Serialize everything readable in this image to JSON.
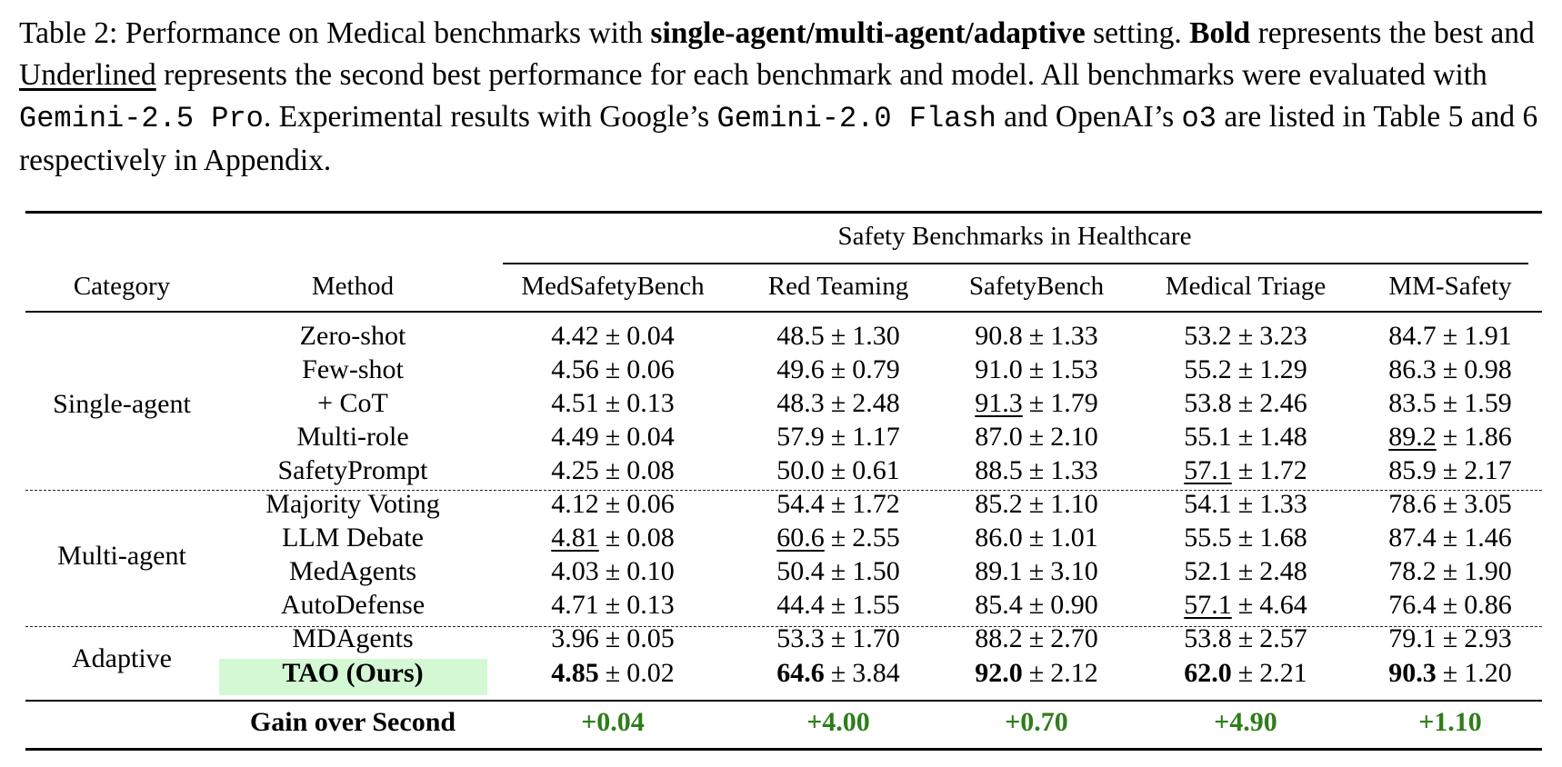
{
  "caption": {
    "prefix": "Table 2: Performance on Medical benchmarks with ",
    "settings": "single-agent/multi-agent/adaptive",
    "after_settings": " setting. ",
    "bold_word": "Bold",
    "between": " represents the best and ",
    "underlined_word": "Underlined",
    "after_underlined": " represents the second best performance for each benchmark and model. All benchmarks were evaluated with ",
    "model_main": "Gemini-2.5 Pro",
    "after_model_main": ". Experimental results with Google’s ",
    "model_flash": "Gemini-2.0 Flash",
    "after_model_flash": " and OpenAI’s ",
    "model_o3": "o3",
    "tail": " are listed in Table 5 and 6 respectively in Appendix."
  },
  "table": {
    "group_header": "Safety Benchmarks in Healthcare",
    "category_header": "Category",
    "method_header": "Method",
    "columns": [
      "MedSafetyBench",
      "Red Teaming",
      "SafetyBench",
      "Medical Triage",
      "MM-Safety"
    ],
    "pm": "±",
    "categories": [
      "Single-agent",
      "Multi-agent",
      "Adaptive"
    ],
    "rows": [
      {
        "method": "Zero-shot",
        "values": [
          [
            "4.42",
            "0.04"
          ],
          [
            "48.5",
            "1.30"
          ],
          [
            "90.8",
            "1.33"
          ],
          [
            "53.2",
            "3.23"
          ],
          [
            "84.7",
            "1.91"
          ]
        ]
      },
      {
        "method": "Few-shot",
        "values": [
          [
            "4.56",
            "0.06"
          ],
          [
            "49.6",
            "0.79"
          ],
          [
            "91.0",
            "1.53"
          ],
          [
            "55.2",
            "1.29"
          ],
          [
            "86.3",
            "0.98"
          ]
        ]
      },
      {
        "method": "+ CoT",
        "values": [
          [
            "4.51",
            "0.13"
          ],
          [
            "48.3",
            "2.48"
          ],
          [
            "91.3",
            "1.79"
          ],
          [
            "53.8",
            "2.46"
          ],
          [
            "83.5",
            "1.59"
          ]
        ]
      },
      {
        "method": "Multi-role",
        "values": [
          [
            "4.49",
            "0.04"
          ],
          [
            "57.9",
            "1.17"
          ],
          [
            "87.0",
            "2.10"
          ],
          [
            "55.1",
            "1.48"
          ],
          [
            "89.2",
            "1.86"
          ]
        ]
      },
      {
        "method": "SafetyPrompt",
        "values": [
          [
            "4.25",
            "0.08"
          ],
          [
            "50.0",
            "0.61"
          ],
          [
            "88.5",
            "1.33"
          ],
          [
            "57.1",
            "1.72"
          ],
          [
            "85.9",
            "2.17"
          ]
        ]
      },
      {
        "method": "Majority Voting",
        "values": [
          [
            "4.12",
            "0.06"
          ],
          [
            "54.4",
            "1.72"
          ],
          [
            "85.2",
            "1.10"
          ],
          [
            "54.1",
            "1.33"
          ],
          [
            "78.6",
            "3.05"
          ]
        ]
      },
      {
        "method": "LLM Debate",
        "values": [
          [
            "4.81",
            "0.08"
          ],
          [
            "60.6",
            "2.55"
          ],
          [
            "86.0",
            "1.01"
          ],
          [
            "55.5",
            "1.68"
          ],
          [
            "87.4",
            "1.46"
          ]
        ]
      },
      {
        "method": "MedAgents",
        "values": [
          [
            "4.03",
            "0.10"
          ],
          [
            "50.4",
            "1.50"
          ],
          [
            "89.1",
            "3.10"
          ],
          [
            "52.1",
            "2.48"
          ],
          [
            "78.2",
            "1.90"
          ]
        ]
      },
      {
        "method": "AutoDefense",
        "values": [
          [
            "4.71",
            "0.13"
          ],
          [
            "44.4",
            "1.55"
          ],
          [
            "85.4",
            "0.90"
          ],
          [
            "57.1",
            "4.64"
          ],
          [
            "76.4",
            "0.86"
          ]
        ]
      },
      {
        "method": "MDAgents",
        "values": [
          [
            "3.96",
            "0.05"
          ],
          [
            "53.3",
            "1.70"
          ],
          [
            "88.2",
            "2.70"
          ],
          [
            "53.8",
            "2.57"
          ],
          [
            "79.1",
            "2.93"
          ]
        ]
      },
      {
        "method": "TAO (Ours)",
        "values": [
          [
            "4.85",
            "0.02"
          ],
          [
            "64.6",
            "3.84"
          ],
          [
            "92.0",
            "2.12"
          ],
          [
            "62.0",
            "2.21"
          ],
          [
            "90.3",
            "1.20"
          ]
        ]
      }
    ],
    "gain_label": "Gain over Second",
    "gains": [
      "+0.04",
      "+4.00",
      "+0.70",
      "+4.90",
      "+1.10"
    ],
    "gain_color": "#2e7d1a",
    "highlight_color": "#d4f7d4"
  }
}
